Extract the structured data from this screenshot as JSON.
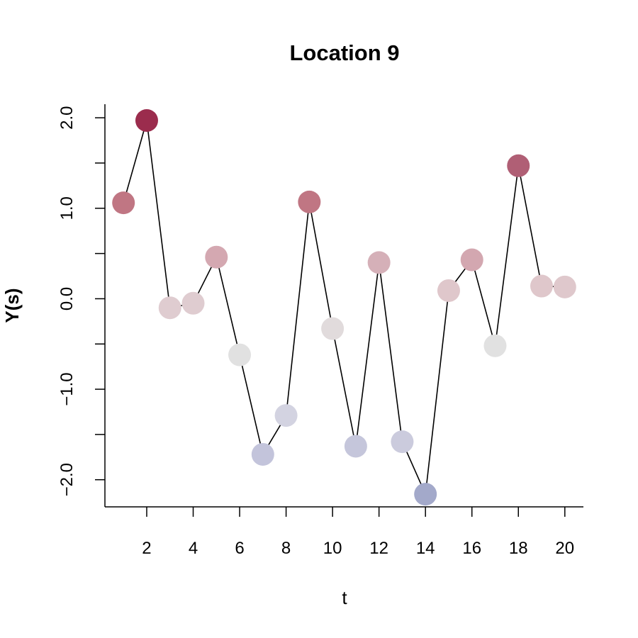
{
  "chart_data": {
    "type": "scatter",
    "title": "Location 9",
    "xlabel": "t",
    "ylabel": "Y(s)",
    "xlim": [
      0.2,
      20.8
    ],
    "ylim": [
      -2.3,
      2.15
    ],
    "x_ticks": [
      2,
      4,
      6,
      8,
      10,
      12,
      14,
      16,
      18,
      20
    ],
    "x_tick_labels": [
      "2",
      "4",
      "6",
      "8",
      "10",
      "12",
      "14",
      "16",
      "18",
      "20"
    ],
    "y_ticks": [
      -2.0,
      -1.5,
      -1.0,
      -0.5,
      0.0,
      0.5,
      1.0,
      1.5,
      2.0
    ],
    "y_tick_labels": [
      "−2.0",
      "",
      "−1.0",
      "",
      "0.0",
      "",
      "1.0",
      "",
      "2.0"
    ],
    "grid": false,
    "connected_line": true,
    "color_scale": {
      "low": "#a3a9ca",
      "mid": "#e6e6e6",
      "high": "#9b2c4d"
    },
    "series": [
      {
        "x": [
          1,
          2,
          3,
          4,
          5,
          6,
          7,
          8,
          9,
          10,
          11,
          12,
          13,
          14,
          15,
          16,
          17,
          18,
          19,
          20
        ],
        "y": [
          1.06,
          1.97,
          -0.1,
          -0.05,
          0.46,
          -0.62,
          -1.72,
          -1.29,
          1.07,
          -0.33,
          -1.63,
          0.4,
          -1.58,
          -2.16,
          0.09,
          0.43,
          -0.52,
          1.47,
          0.14,
          0.13
        ],
        "colors": [
          "#c07683",
          "#9b2c4d",
          "#dfccd0",
          "#dfccd0",
          "#d4a8b1",
          "#e1e1e1",
          "#c3c4db",
          "#d3d3e1",
          "#c07683",
          "#e1dbdc",
          "#c5c6db",
          "#d5b0b8",
          "#cbcbdd",
          "#a3a9ca",
          "#dfc7cb",
          "#d3a7b0",
          "#e1e1e1",
          "#b05f75",
          "#dfc7cb",
          "#dfc8cc"
        ]
      }
    ]
  }
}
